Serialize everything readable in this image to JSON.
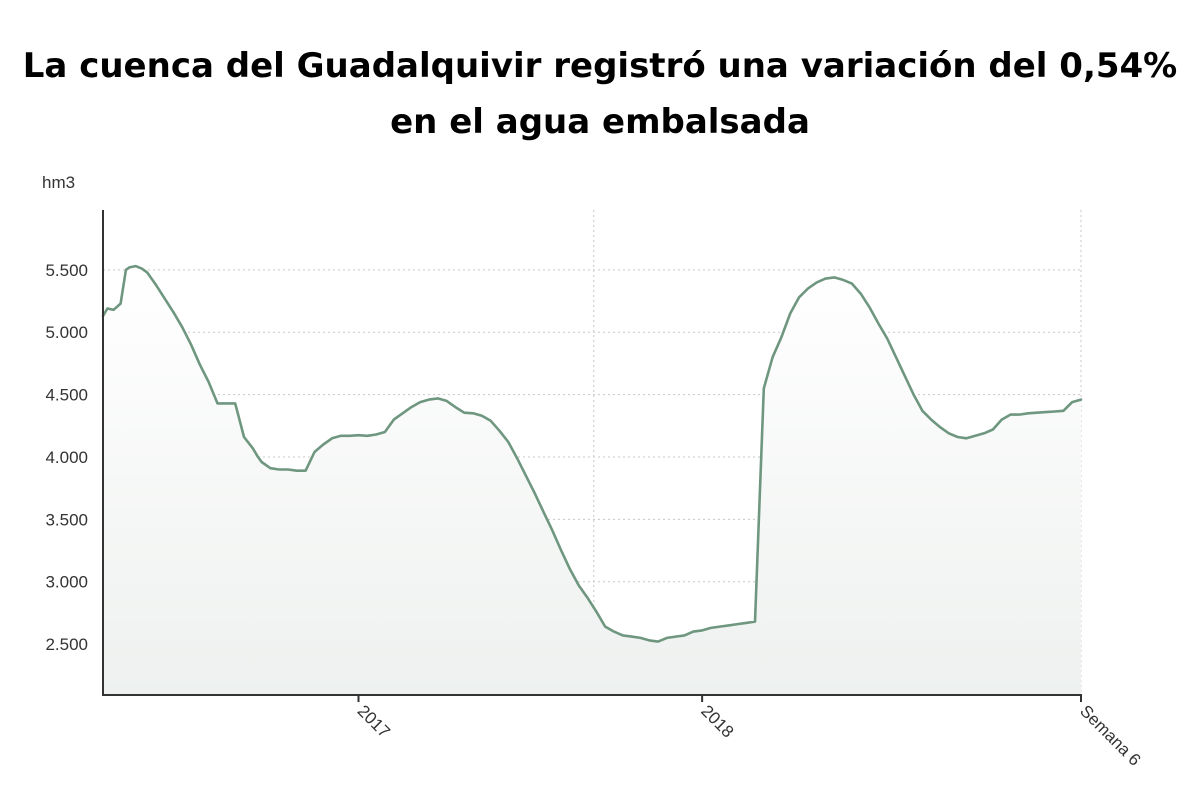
{
  "title": {
    "line1": "La cuenca del Guadalquivir registró una variación del 0,54%",
    "line2": "en el agua embalsada"
  },
  "colors": {
    "line": "#6f9780",
    "fill_top": "#ffffff",
    "fill_bottom": "#eef1ef",
    "grid": "#c8c8c8",
    "axis": "#333333"
  },
  "chart_data": {
    "type": "area",
    "ylabel": "hm3",
    "ylim": [
      2100,
      5980
    ],
    "yticks": [
      2500,
      3000,
      3500,
      4000,
      4500,
      5000,
      5500
    ],
    "ytick_labels": [
      "2.500",
      "3.000",
      "3.500",
      "4.000",
      "4.500",
      "5.000",
      "5.500"
    ],
    "x_units": "weeks",
    "xlim": [
      0,
      111
    ],
    "xticks": [
      {
        "x": 29,
        "label": "2017"
      },
      {
        "x": 68,
        "label": "2018"
      },
      {
        "x": 111,
        "label": "Semana 6"
      }
    ],
    "vertical_gridlines": [
      55.7,
      111
    ],
    "grid": true,
    "series": [
      {
        "x": [
          0,
          0.5,
          1.2,
          2,
          2.6,
          3,
          3.7,
          4.4,
          5,
          6,
          7,
          8,
          9,
          10,
          11,
          12,
          13,
          14,
          15,
          16,
          17,
          17.5,
          18,
          19,
          20,
          21,
          22,
          23,
          24,
          25,
          26,
          27,
          28,
          29,
          30,
          31,
          32,
          33,
          34,
          35,
          36,
          37,
          38,
          39,
          40,
          41,
          42,
          43,
          44,
          45,
          46,
          47,
          48,
          49,
          50,
          51,
          52,
          53,
          54,
          55,
          56,
          57,
          58,
          59,
          60,
          61,
          62,
          63,
          64,
          65,
          66,
          67,
          68,
          69,
          70,
          71,
          72,
          73,
          74,
          75,
          76,
          77,
          78,
          79,
          80,
          81,
          82,
          83,
          84,
          85,
          86,
          87,
          88,
          89,
          90,
          91,
          92,
          93,
          94,
          95,
          96,
          97,
          98,
          99,
          100,
          101,
          102,
          103,
          104,
          105,
          106,
          107,
          108,
          109,
          110,
          111
        ],
        "values": [
          5130,
          5190,
          5180,
          5230,
          5500,
          5520,
          5530,
          5510,
          5480,
          5380,
          5270,
          5160,
          5040,
          4900,
          4740,
          4600,
          4430,
          4430,
          4430,
          4160,
          4070,
          4010,
          3960,
          3910,
          3900,
          3900,
          3890,
          3890,
          4040,
          4100,
          4150,
          4170,
          4170,
          4175,
          4170,
          4180,
          4200,
          4300,
          4350,
          4400,
          4440,
          4460,
          4470,
          4450,
          4400,
          4355,
          4350,
          4330,
          4290,
          4210,
          4120,
          3990,
          3850,
          3710,
          3560,
          3410,
          3250,
          3100,
          2970,
          2870,
          2760,
          2640,
          2600,
          2570,
          2560,
          2550,
          2530,
          2520,
          2550,
          2560,
          2570,
          2600,
          2610,
          2630,
          2640,
          2650,
          2660,
          2670,
          2680,
          4550,
          4800,
          4960,
          5150,
          5280,
          5350,
          5400,
          5430,
          5440,
          5420,
          5390,
          5310,
          5200,
          5070,
          4950,
          4800,
          4650,
          4500,
          4370,
          4300,
          4240,
          4190,
          4160,
          4150,
          4170,
          4190,
          4220,
          4300,
          4340,
          4340,
          4350,
          4355,
          4360,
          4365,
          4370,
          4440,
          4460
        ]
      }
    ]
  }
}
